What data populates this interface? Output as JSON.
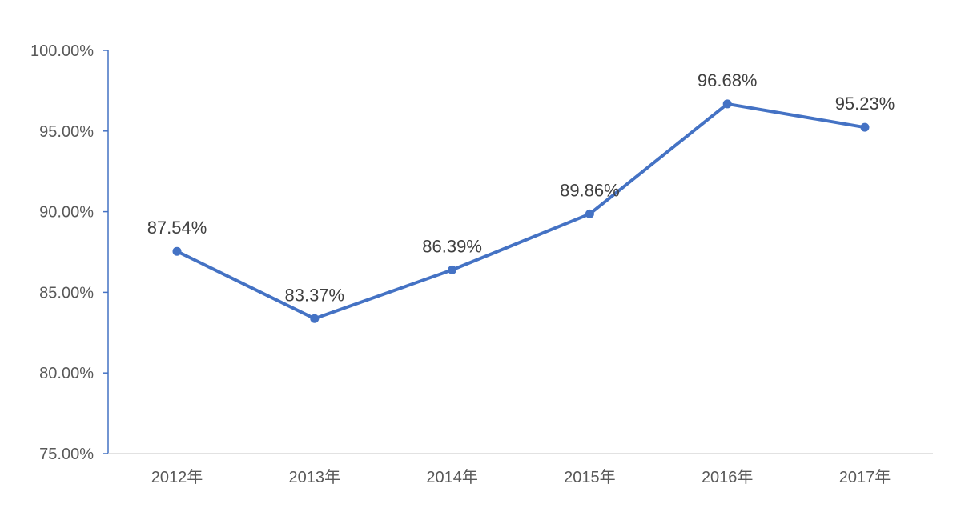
{
  "chart_data": {
    "type": "line",
    "title": "",
    "xlabel": "",
    "ylabel": "",
    "categories": [
      "2012年",
      "2013年",
      "2014年",
      "2015年",
      "2016年",
      "2017年"
    ],
    "series": [
      {
        "values": [
          87.54,
          83.37,
          86.39,
          89.86,
          96.68,
          95.23
        ],
        "labels": [
          "87.54%",
          "83.37%",
          "86.39%",
          "89.86%",
          "96.68%",
          "95.23%"
        ],
        "color": "#4472c4"
      }
    ],
    "ylim": [
      75,
      100
    ],
    "yticks": [
      75,
      80,
      85,
      90,
      95,
      100
    ],
    "ytick_labels": [
      "75.00%",
      "80.00%",
      "85.00%",
      "90.00%",
      "95.00%",
      "100.00%"
    ],
    "grid": false,
    "legend": "none",
    "axis_color": "#4472c4",
    "baseline_color": "#d9d9d9",
    "text_color": "#595959"
  }
}
